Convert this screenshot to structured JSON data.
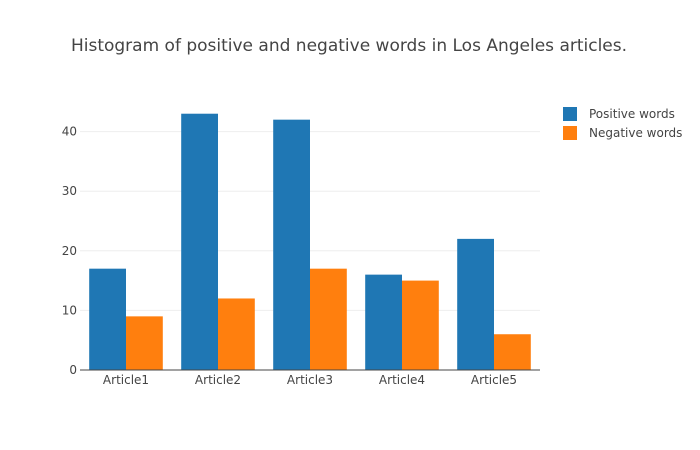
{
  "chart_data": {
    "type": "bar",
    "title": "Histogram of positive and negative words in Los Angeles articles.",
    "xlabel": "",
    "ylabel": "",
    "categories": [
      "Article1",
      "Article2",
      "Article3",
      "Article4",
      "Article5"
    ],
    "series": [
      {
        "name": "Positive words",
        "color": "#1f77b4",
        "values": [
          17,
          43,
          42,
          16,
          22
        ]
      },
      {
        "name": "Negative words",
        "color": "#ff7f0e",
        "values": [
          9,
          12,
          17,
          15,
          6
        ]
      }
    ],
    "ylim": [
      0,
      45.3
    ],
    "yticks": [
      0,
      10,
      20,
      30,
      40
    ],
    "grid": true,
    "legend_position": "top-right",
    "barmode": "group"
  }
}
